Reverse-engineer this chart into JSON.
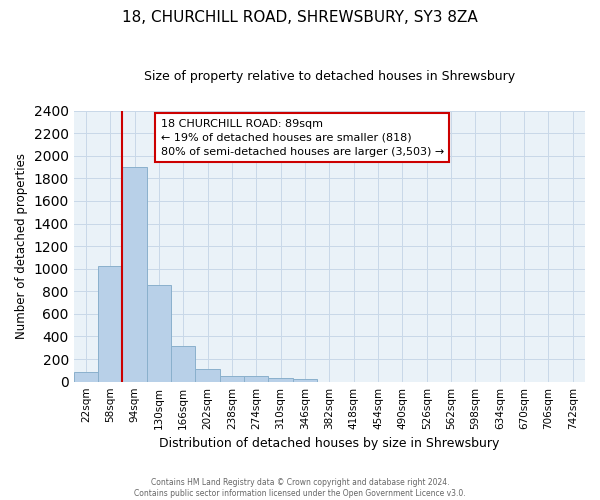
{
  "title": "18, CHURCHILL ROAD, SHREWSBURY, SY3 8ZA",
  "subtitle": "Size of property relative to detached houses in Shrewsbury",
  "xlabel": "Distribution of detached houses by size in Shrewsbury",
  "ylabel": "Number of detached properties",
  "footer1": "Contains HM Land Registry data © Crown copyright and database right 2024.",
  "footer2": "Contains public sector information licensed under the Open Government Licence v3.0.",
  "bar_labels": [
    "22sqm",
    "58sqm",
    "94sqm",
    "130sqm",
    "166sqm",
    "202sqm",
    "238sqm",
    "274sqm",
    "310sqm",
    "346sqm",
    "382sqm",
    "418sqm",
    "454sqm",
    "490sqm",
    "526sqm",
    "562sqm",
    "598sqm",
    "634sqm",
    "670sqm",
    "706sqm",
    "742sqm"
  ],
  "bar_values": [
    90,
    1020,
    1900,
    860,
    320,
    115,
    50,
    50,
    30,
    25,
    0,
    0,
    0,
    0,
    0,
    0,
    0,
    0,
    0,
    0,
    0
  ],
  "bar_color": "#b8d0e8",
  "bar_edgecolor": "#8ab0cc",
  "ylim": [
    0,
    2400
  ],
  "yticks": [
    0,
    200,
    400,
    600,
    800,
    1000,
    1200,
    1400,
    1600,
    1800,
    2000,
    2200,
    2400
  ],
  "annotation_title": "18 CHURCHILL ROAD: 89sqm",
  "annotation_line1": "← 19% of detached houses are smaller (818)",
  "annotation_line2": "80% of semi-detached houses are larger (3,503) →",
  "vline_color": "#cc0000",
  "annotation_box_color": "#cc0000",
  "grid_color": "#c8d8e8",
  "background_color": "#eaf2f8",
  "vline_x_index": 1.5
}
